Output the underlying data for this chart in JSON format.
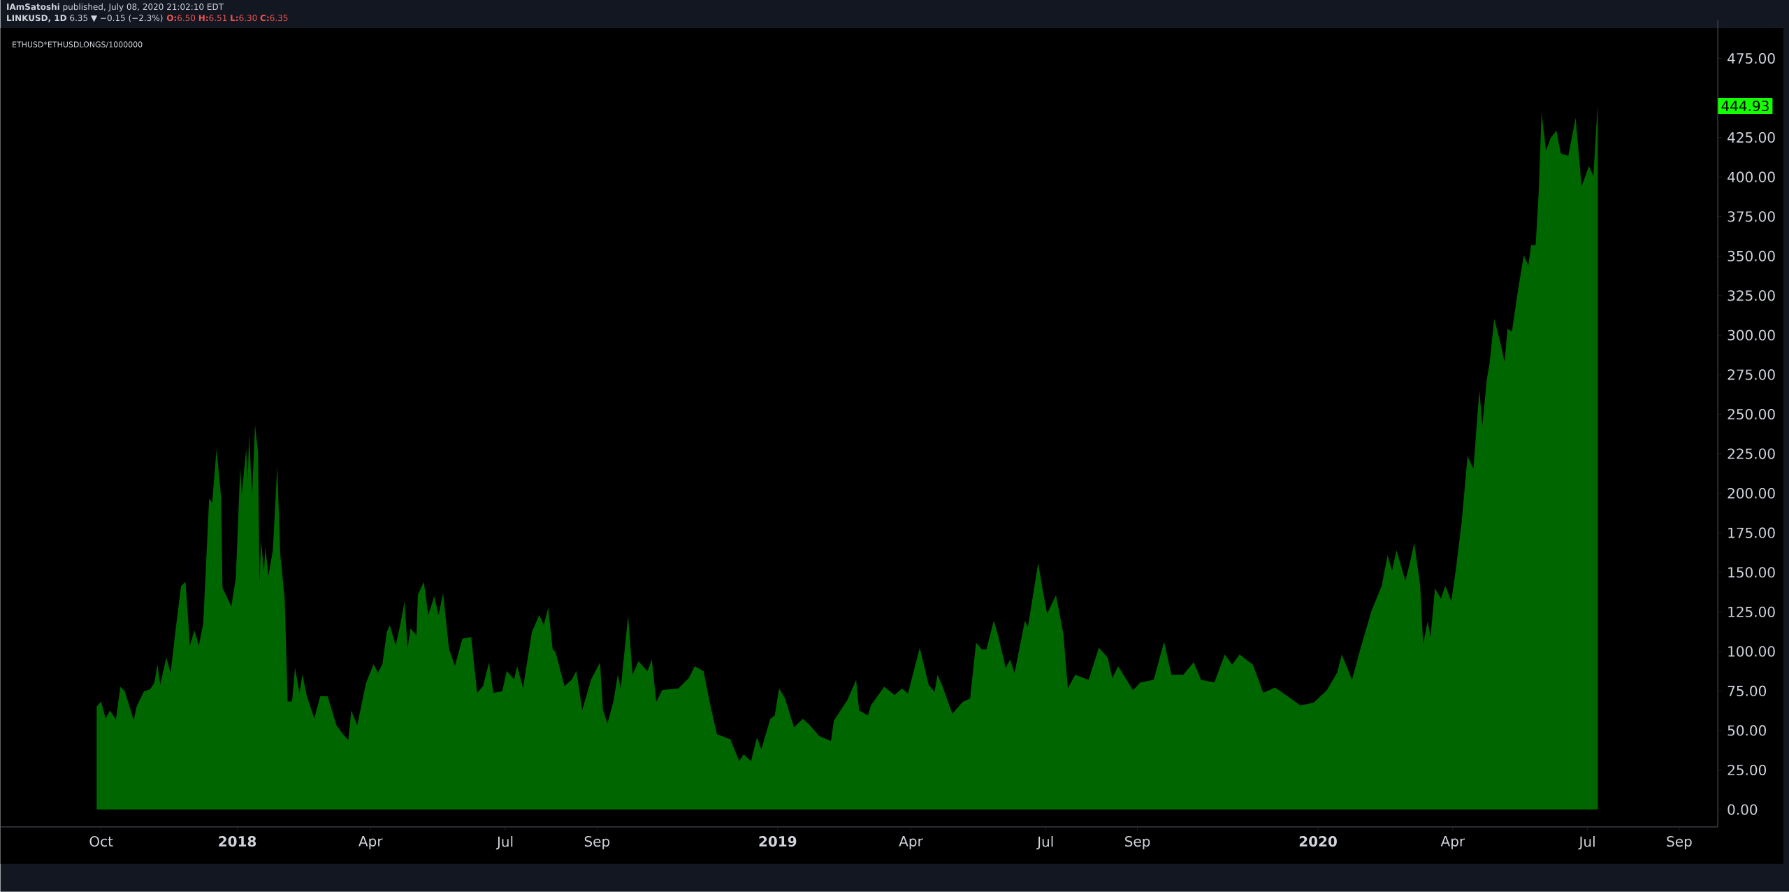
{
  "chart_data": {
    "type": "area",
    "title": "ETHUSD*ETHUSDLONGS/1000000",
    "annotations": [
      "**IAmSatoshi** published, July 08, 2020 21:02:10 EDT",
      "**LINKUSD, 1D** 6.35 ▼ −0.15 (−2.3%)",
      "**O:**6.50 **H:**6.51 **L:**6.30 **C:**6.35",
      "444.93"
    ],
    "x": [
      "2017-09-28",
      "2017-10-01",
      "2017-10-04",
      "2017-10-07",
      "2017-10-11",
      "2017-10-14",
      "2017-10-17",
      "2017-10-23",
      "2017-10-25",
      "2017-10-30",
      "2017-11-03",
      "2017-11-06",
      "2017-11-08",
      "2017-11-10",
      "2017-11-14",
      "2017-11-17",
      "2017-11-20",
      "2017-11-24",
      "2017-11-27",
      "2017-11-30",
      "2017-12-03",
      "2017-12-06",
      "2017-12-09",
      "2017-12-13",
      "2017-12-15",
      "2017-12-18",
      "2017-12-21",
      "2017-12-22",
      "2017-12-28",
      "2017-12-31",
      "2018-01-03",
      "2018-01-04",
      "2018-01-07",
      "2018-01-08",
      "2018-01-09",
      "2018-01-11",
      "2018-01-13",
      "2018-01-15",
      "2018-01-16",
      "2018-01-17",
      "2018-01-19",
      "2018-01-20",
      "2018-01-22",
      "2018-01-25",
      "2018-01-28",
      "2018-01-30",
      "2018-02-02",
      "2018-02-04",
      "2018-02-07",
      "2018-02-09",
      "2018-02-12",
      "2018-02-14",
      "2018-02-17",
      "2018-02-22",
      "2018-02-26",
      "2018-03-03",
      "2018-03-09",
      "2018-03-14",
      "2018-03-17",
      "2018-03-19",
      "2018-03-23",
      "2018-03-29",
      "2018-04-03",
      "2018-04-06",
      "2018-04-09",
      "2018-04-12",
      "2018-04-14",
      "2018-04-18",
      "2018-04-21",
      "2018-04-24",
      "2018-04-26",
      "2018-04-28",
      "2018-05-02",
      "2018-05-03",
      "2018-05-07",
      "2018-05-10",
      "2018-05-14",
      "2018-05-17",
      "2018-05-20",
      "2018-05-24",
      "2018-05-28",
      "2018-06-02",
      "2018-06-08",
      "2018-06-12",
      "2018-06-16",
      "2018-06-20",
      "2018-06-23",
      "2018-06-29",
      "2018-07-02",
      "2018-07-07",
      "2018-07-09",
      "2018-07-13",
      "2018-07-19",
      "2018-07-24",
      "2018-07-27",
      "2018-07-30",
      "2018-08-02",
      "2018-08-04",
      "2018-08-10",
      "2018-08-15",
      "2018-08-18",
      "2018-08-22",
      "2018-08-28",
      "2018-08-31",
      "2018-09-03",
      "2018-09-05",
      "2018-09-08",
      "2018-09-12",
      "2018-09-15",
      "2018-09-17",
      "2018-09-22",
      "2018-09-25",
      "2018-09-29",
      "2018-10-05",
      "2018-10-08",
      "2018-10-11",
      "2018-10-15",
      "2018-10-26",
      "2018-11-02",
      "2018-11-06",
      "2018-11-12",
      "2018-11-16",
      "2018-11-21",
      "2018-11-30",
      "2018-12-06",
      "2018-12-09",
      "2018-12-14",
      "2018-12-18",
      "2018-12-21",
      "2018-12-27",
      "2018-12-30",
      "2019-01-02",
      "2019-01-06",
      "2019-01-12",
      "2019-01-18",
      "2019-01-23",
      "2019-01-29",
      "2019-02-06",
      "2019-02-08",
      "2019-02-17",
      "2019-02-23",
      "2019-02-25",
      "2019-03-03",
      "2019-03-05",
      "2019-03-14",
      "2019-03-21",
      "2019-03-26",
      "2019-03-30",
      "2019-04-07",
      "2019-04-13",
      "2019-04-17",
      "2019-04-19",
      "2019-04-22",
      "2019-04-29",
      "2019-05-06",
      "2019-05-11",
      "2019-05-15",
      "2019-05-19",
      "2019-05-22",
      "2019-05-27",
      "2019-05-30",
      "2019-06-04",
      "2019-06-07",
      "2019-06-10",
      "2019-06-17",
      "2019-06-19",
      "2019-06-26",
      "2019-06-29",
      "2019-07-02",
      "2019-07-08",
      "2019-07-13",
      "2019-07-16",
      "2019-07-21",
      "2019-07-30",
      "2019-08-06",
      "2019-08-12",
      "2019-08-15",
      "2019-08-19",
      "2019-08-29",
      "2019-09-03",
      "2019-09-12",
      "2019-09-19",
      "2019-09-24",
      "2019-10-02",
      "2019-10-09",
      "2019-10-14",
      "2019-10-23",
      "2019-10-30",
      "2019-11-04",
      "2019-11-09",
      "2019-11-18",
      "2019-11-25",
      "2019-12-03",
      "2019-12-13",
      "2019-12-20",
      "2019-12-29",
      "2020-01-07",
      "2020-01-14",
      "2020-01-17",
      "2020-01-24",
      "2020-01-29",
      "2020-02-06",
      "2020-02-13",
      "2020-02-17",
      "2020-02-20",
      "2020-02-23",
      "2020-02-29",
      "2020-03-03",
      "2020-03-06",
      "2020-03-10",
      "2020-03-12",
      "2020-03-15",
      "2020-03-17",
      "2020-03-20",
      "2020-03-24",
      "2020-03-27",
      "2020-03-31",
      "2020-04-03",
      "2020-04-07",
      "2020-04-11",
      "2020-04-15",
      "2020-04-17",
      "2020-04-19",
      "2020-04-21",
      "2020-04-24",
      "2020-04-26",
      "2020-04-29",
      "2020-05-03",
      "2020-05-06",
      "2020-05-08",
      "2020-05-11",
      "2020-05-15",
      "2020-05-19",
      "2020-05-22",
      "2020-05-24",
      "2020-05-27",
      "2020-05-29",
      "2020-05-31",
      "2020-06-03",
      "2020-06-06",
      "2020-06-10",
      "2020-06-13",
      "2020-06-18",
      "2020-06-23",
      "2020-06-27",
      "2020-07-02",
      "2020-07-05",
      "2020-07-07",
      "2020-07-08"
    ],
    "series": [
      {
        "color": "#006600",
        "values": [
          65.1,
          68.3,
          57.6,
          62.6,
          57,
          77.6,
          74.8,
          56.6,
          65.1,
          74.8,
          75.9,
          80.1,
          92,
          79.1,
          96.2,
          86.6,
          111.2,
          141.3,
          144,
          103.7,
          113.4,
          103.7,
          117.6,
          197,
          193.8,
          228.1,
          198,
          140.2,
          128.4,
          146.6,
          216.3,
          199.1,
          228.1,
          208.8,
          236.7,
          199,
          243.1,
          225.9,
          143.4,
          170.2,
          150.9,
          165.9,
          147.7,
          163.8,
          217.3,
          161.6,
          133.7,
          68.3,
          68.3,
          89.8,
          73.7,
          85.5,
          71.6,
          57.6,
          71.6,
          71.6,
          53.3,
          46.9,
          44.1,
          62.6,
          53.3,
          80.1,
          92,
          86.6,
          92,
          112.3,
          116.6,
          103.7,
          116.6,
          131.6,
          101.6,
          114.5,
          110.2,
          135.9,
          144,
          123,
          134.8,
          123,
          137,
          101.6,
          90.8,
          108,
          109.1,
          73.7,
          78,
          93,
          73.7,
          74.8,
          87.7,
          82.3,
          90.8,
          76.9,
          112.3,
          123,
          116.6,
          127.7,
          101.6,
          99.4,
          78,
          82.3,
          87.7,
          63,
          82.3,
          87.7,
          93,
          63,
          54.4,
          68.1,
          85.2,
          76.6,
          122.7,
          85.2,
          93.8,
          87.4,
          94.9,
          68.1,
          75.6,
          76.6,
          83.1,
          90.6,
          87.4,
          68.1,
          47.7,
          44.5,
          30.6,
          34.9,
          30.6,
          45.6,
          38.1,
          57.4,
          59.5,
          76.6,
          70.2,
          52,
          57.4,
          53.1,
          46.6,
          43.4,
          56.3,
          69.1,
          82,
          62.7,
          59.5,
          65.9,
          77.7,
          72.4,
          76.6,
          73.4,
          102.4,
          78.8,
          74.5,
          85.2,
          78.8,
          60.6,
          68.1,
          70.2,
          105.6,
          101.3,
          101.3,
          119.5,
          109.9,
          89.5,
          94.9,
          86.3,
          119.5,
          115.3,
          156,
          138.8,
          123.8,
          135.6,
          111,
          76.6,
          85.2,
          82,
          102.4,
          95.9,
          83.1,
          90.6,
          75.5,
          80.4,
          82,
          106.1,
          85.2,
          85.2,
          93.2,
          82,
          80.4,
          98.1,
          91.6,
          98.1,
          91.6,
          73.9,
          77.2,
          70.7,
          65.9,
          67.5,
          75.5,
          86.8,
          98.1,
          82,
          99.7,
          125.4,
          141.5,
          160.8,
          151.1,
          164,
          144.7,
          155.9,
          168.8,
          141.5,
          104.5,
          119,
          109.3,
          139.9,
          133.4,
          141.5,
          131.8,
          151.1,
          181.7,
          223.5,
          215.5,
          241.2,
          265.3,
          242.8,
          271.8,
          283,
          310.3,
          295.9,
          283,
          303.9,
          302.3,
          328,
          350.6,
          344.1,
          357,
          357,
          389.2,
          440.6,
          416.5,
          424.5,
          429.4,
          414.9,
          413.3,
          437.4,
          394,
          406.9,
          400.4,
          432.6,
          444.93
        ]
      }
    ],
    "xlim": [
      "2017-07-25",
      "2020-09-27"
    ],
    "xticks": [
      {
        "value": "2017-10-01",
        "label": "Oct"
      },
      {
        "value": "2018-01-01",
        "label": "2018"
      },
      {
        "value": "2018-04-01",
        "label": "Apr"
      },
      {
        "value": "2018-07-01",
        "label": "Jul"
      },
      {
        "value": "2018-09-01",
        "label": "Sep"
      },
      {
        "value": "2019-01-01",
        "label": "2019"
      },
      {
        "value": "2019-04-01",
        "label": "Apr"
      },
      {
        "value": "2019-07-01",
        "label": "Jul"
      },
      {
        "value": "2019-09-01",
        "label": "Sep"
      },
      {
        "value": "2020-01-01",
        "label": "2020"
      },
      {
        "value": "2020-04-01",
        "label": "Apr"
      },
      {
        "value": "2020-07-01",
        "label": "Jul"
      },
      {
        "value": "2020-09-01",
        "label": "Sep"
      }
    ],
    "ylim": [
      -11,
      499
    ],
    "yticks": [
      {
        "value": 0,
        "label": "0.00"
      },
      {
        "value": 25,
        "label": "25.00"
      },
      {
        "value": 50,
        "label": "50.00"
      },
      {
        "value": 75,
        "label": "75.00"
      },
      {
        "value": 100,
        "label": "100.00"
      },
      {
        "value": 125,
        "label": "125.00"
      },
      {
        "value": 150,
        "label": "150.00"
      },
      {
        "value": 175,
        "label": "175.00"
      },
      {
        "value": 200,
        "label": "200.00"
      },
      {
        "value": 225,
        "label": "225.00"
      },
      {
        "value": 250,
        "label": "250.00"
      },
      {
        "value": 275,
        "label": "275.00"
      },
      {
        "value": 300,
        "label": "300.00"
      },
      {
        "value": 325,
        "label": "325.00"
      },
      {
        "value": 350,
        "label": "350.00"
      },
      {
        "value": 375,
        "label": "375.00"
      },
      {
        "value": 400,
        "label": "400.00"
      },
      {
        "value": 425,
        "label": "425.00"
      },
      {
        "value": 450,
        "label": null
      },
      {
        "value": 475,
        "label": "475.00"
      }
    ],
    "grid": false
  }
}
